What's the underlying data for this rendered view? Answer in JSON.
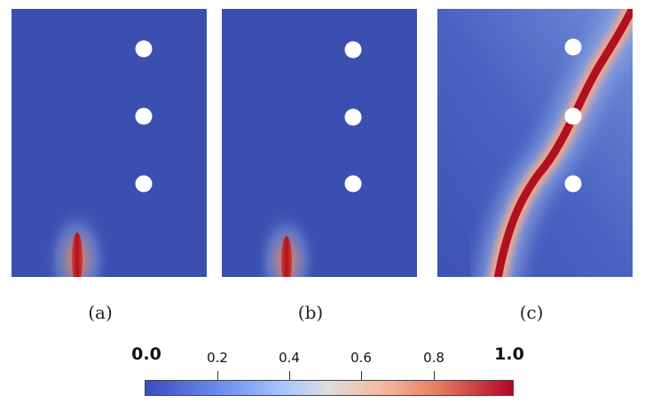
{
  "figure": {
    "panels": [
      {
        "id": "a",
        "caption": "(a)",
        "crack": "short vertical crack at bottom edge"
      },
      {
        "id": "b",
        "caption": "(b)",
        "crack": "short vertical crack at bottom edge"
      },
      {
        "id": "c",
        "caption": "(c)",
        "crack": "curved crack from bottom to top passing through middle hole"
      }
    ],
    "holes_per_panel": 3
  },
  "colorbar": {
    "min_label": "0.0",
    "max_label": "1.0",
    "tick_labels": [
      "0.2",
      "0.4",
      "0.6",
      "0.8"
    ],
    "min": 0.0,
    "max": 1.0,
    "colormap": "cool-to-warm",
    "colors": {
      "low": "#3b4cc0",
      "mid": "#dddddd",
      "high": "#b40426"
    }
  },
  "colors": {
    "background_field": "#3b4fb0",
    "hole": "#ffffff",
    "crack_core": "#b01020"
  }
}
